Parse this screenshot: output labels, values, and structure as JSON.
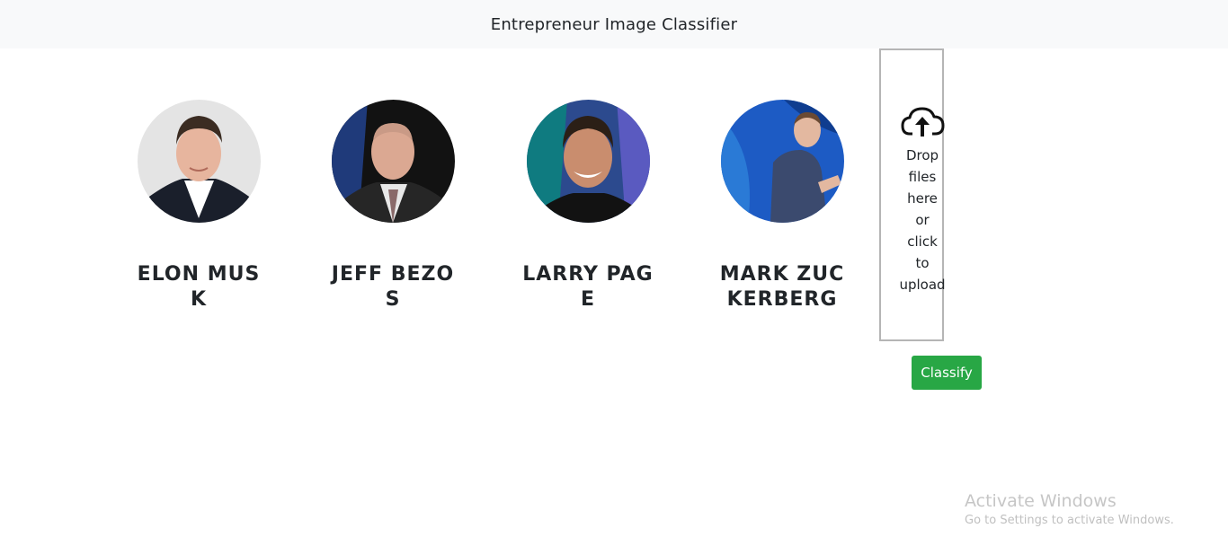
{
  "navbar": {
    "title": "Entrepreneur Image Classifier"
  },
  "people": [
    {
      "name": "ELON MUSK",
      "icon": "elon-musk-photo"
    },
    {
      "name": "JEFF BEZOS",
      "icon": "jeff-bezos-photo"
    },
    {
      "name": "LARRY PAGE",
      "icon": "larry-page-photo"
    },
    {
      "name": "MARK ZUCKERBERG",
      "icon": "mark-zuckerberg-photo"
    }
  ],
  "dropzone": {
    "icon": "cloud-upload-icon",
    "text": "Drop files here or click to upload"
  },
  "classify_button": {
    "label": "Classify",
    "color": "#28a745"
  },
  "watermark": {
    "title": "Activate Windows",
    "subtitle": "Go to Settings to activate Windows."
  }
}
